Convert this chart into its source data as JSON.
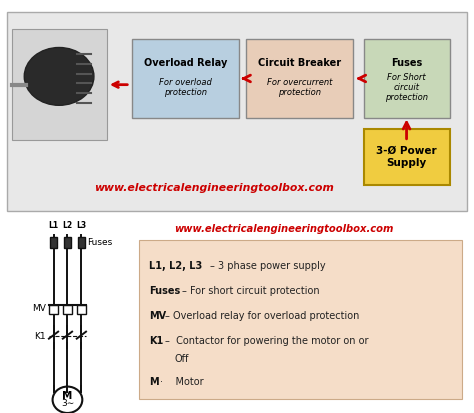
{
  "website": "www.electricalengineeringtoolbox.com",
  "top_bg_color": "#e8e8e8",
  "box1_label": "Overload Relay",
  "box1_sub": "For overload\nprotection",
  "box1_color": "#b8cfe0",
  "box2_label": "Circuit Breaker",
  "box2_sub": "For overcurrent\nprotection",
  "box2_color": "#e8cdb8",
  "box3_label": "Fuses",
  "box3_sub": "For Short\ncircuit\nprotection",
  "box3_color": "#c8d8b8",
  "box4_label": "3-Ø Power\nSupply",
  "box4_color": "#f0cc40",
  "arrow_color": "#cc0000",
  "legend_bg": "#f5ddc8",
  "line_color": "#111111",
  "bg_color": "#ffffff"
}
